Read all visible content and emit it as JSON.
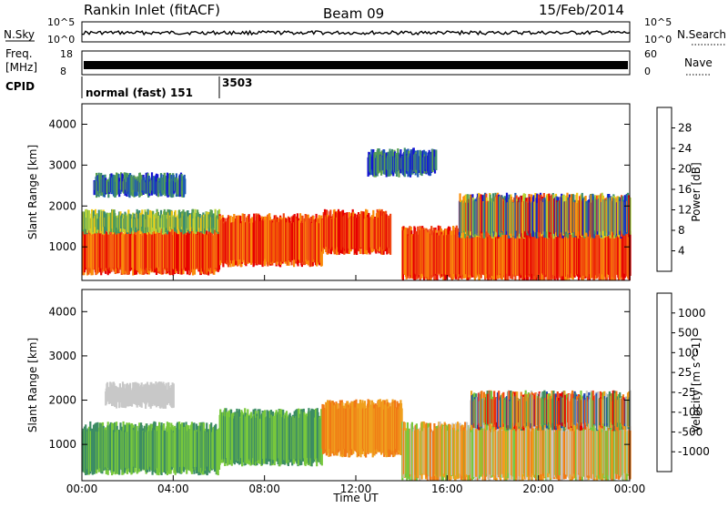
{
  "header": {
    "station": "Rankin Inlet (fitACF)",
    "beam": "Beam 09",
    "date": "15/Feb/2014"
  },
  "status_panels": {
    "nsky_label": "N.Sky",
    "nsearch_label": "N.Search",
    "freq_label_line1": "Freq.",
    "freq_label_line2": "[MHz]",
    "nave_label": "Nave",
    "cpid_label": "CPID",
    "noise_ticks_left": [
      "10^5",
      "10^0"
    ],
    "noise_ticks_right": [
      "10^5",
      "10^0"
    ],
    "freq_ticks": [
      "18",
      "8"
    ],
    "nave_ticks": [
      "60",
      "0"
    ],
    "cpid_segments": [
      {
        "label": "normal (fast) 151",
        "start_hour": 0
      },
      {
        "label": "3503",
        "start_hour": 6
      }
    ]
  },
  "x_axis": {
    "title": "Time UT",
    "ticks": [
      "00:00",
      "04:00",
      "08:00",
      "12:00",
      "16:00",
      "20:00",
      "00:00"
    ]
  },
  "chart_data": [
    {
      "type": "heatmap",
      "name": "power",
      "ylabel": "Slant Range [km]",
      "ylim": [
        180,
        4500
      ],
      "xlim_hours": [
        0,
        24
      ],
      "yticks": [
        "4000",
        "3000",
        "2000",
        "1000"
      ],
      "colorbar": {
        "label": "Power [dB]",
        "ticks": [
          "28",
          "24",
          "20",
          "16",
          "12",
          "8",
          "4"
        ],
        "colors": [
          "#1414d2",
          "#1e5ab4",
          "#3c8c6e",
          "#5aa050",
          "#b4d23c",
          "#f0c814",
          "#fa8c0a",
          "#f04614",
          "#e60000"
        ]
      },
      "regions": [
        {
          "t0": 0.0,
          "t1": 6.0,
          "r0": 400,
          "r1": 1400,
          "level": "high"
        },
        {
          "t0": 0.0,
          "t1": 6.0,
          "r0": 1400,
          "r1": 1800,
          "level": "mid"
        },
        {
          "t0": 0.5,
          "t1": 4.5,
          "r0": 2300,
          "r1": 2700,
          "level": "low"
        },
        {
          "t0": 6.0,
          "t1": 10.5,
          "r0": 600,
          "r1": 1700,
          "level": "high"
        },
        {
          "t0": 10.5,
          "t1": 13.5,
          "r0": 900,
          "r1": 1800,
          "level": "high"
        },
        {
          "t0": 14.0,
          "t1": 24.0,
          "r0": 250,
          "r1": 1400,
          "level": "high"
        },
        {
          "t0": 16.5,
          "t1": 24.0,
          "r0": 1300,
          "r1": 2200,
          "level": "mixed"
        },
        {
          "t0": 12.5,
          "t1": 15.5,
          "r0": 2800,
          "r1": 3300,
          "level": "low"
        }
      ]
    },
    {
      "type": "heatmap",
      "name": "velocity",
      "ylabel": "Slant Range [km]",
      "ylim": [
        180,
        4500
      ],
      "xlim_hours": [
        0,
        24
      ],
      "yticks": [
        "4000",
        "3000",
        "2000",
        "1000"
      ],
      "colorbar": {
        "label": "Velocity [m s^-1]",
        "ticks": [
          "1000",
          "500",
          "100",
          "25",
          "-25",
          "-100",
          "-500",
          "-1000"
        ],
        "colors": [
          "#1e46b4",
          "#3c8c64",
          "#78c83c",
          "#c8c8c8",
          "#f0a01e",
          "#f07814",
          "#f04614",
          "#e60000"
        ]
      },
      "regions": [
        {
          "t0": 0.0,
          "t1": 6.0,
          "r0": 400,
          "r1": 1400,
          "level": "toward-slow"
        },
        {
          "t0": 1.0,
          "t1": 4.0,
          "r0": 1900,
          "r1": 2300,
          "level": "near-zero"
        },
        {
          "t0": 6.0,
          "t1": 10.5,
          "r0": 600,
          "r1": 1700,
          "level": "toward-slow"
        },
        {
          "t0": 10.5,
          "t1": 14.0,
          "r0": 800,
          "r1": 1900,
          "level": "away-slow"
        },
        {
          "t0": 14.0,
          "t1": 24.0,
          "r0": 250,
          "r1": 1400,
          "level": "mixed-near-zero"
        },
        {
          "t0": 17.0,
          "t1": 24.0,
          "r0": 1400,
          "r1": 2100,
          "level": "mixed"
        }
      ]
    }
  ]
}
